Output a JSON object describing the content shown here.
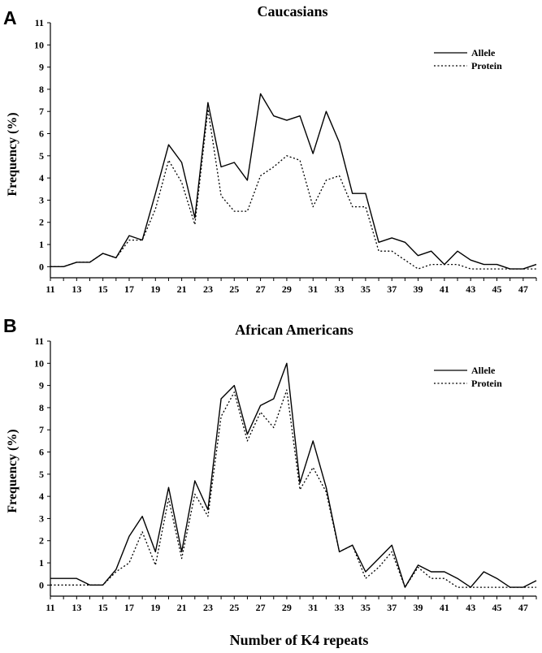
{
  "chart_data": [
    {
      "panel_label": "A",
      "type": "line",
      "title": "Caucasians",
      "xlabel": "",
      "ylabel": "Frequency (%)",
      "x": [
        11,
        12,
        13,
        14,
        15,
        16,
        17,
        18,
        19,
        20,
        21,
        22,
        23,
        24,
        25,
        26,
        27,
        28,
        29,
        30,
        31,
        32,
        33,
        34,
        35,
        36,
        37,
        38,
        39,
        40,
        41,
        42,
        43,
        44,
        45,
        46,
        47,
        48
      ],
      "xticks": [
        11,
        13,
        15,
        17,
        19,
        21,
        23,
        25,
        27,
        29,
        31,
        33,
        35,
        37,
        39,
        41,
        43,
        45,
        47
      ],
      "yticks": [
        0,
        1,
        2,
        3,
        4,
        5,
        6,
        7,
        8,
        9,
        10,
        11
      ],
      "xlim": [
        11,
        48
      ],
      "ylim": [
        -0.5,
        11
      ],
      "legend_position": "top-right",
      "series": [
        {
          "name": "Allele",
          "style": "solid",
          "values": [
            0,
            0,
            0.2,
            0.2,
            0.6,
            0.4,
            1.4,
            1.2,
            3.3,
            5.5,
            4.7,
            2.2,
            7.4,
            4.5,
            4.7,
            3.9,
            7.8,
            6.8,
            6.6,
            6.8,
            5.1,
            7.0,
            5.6,
            3.3,
            3.3,
            1.1,
            1.3,
            1.1,
            0.5,
            0.7,
            0.1,
            0.7,
            0.3,
            0.1,
            0.1,
            -0.1,
            -0.1,
            0.1
          ]
        },
        {
          "name": "Protein",
          "style": "dotted",
          "values": [
            0,
            0,
            0.2,
            0.2,
            0.6,
            0.4,
            1.2,
            1.2,
            2.6,
            4.8,
            3.8,
            1.9,
            7.1,
            3.2,
            2.5,
            2.5,
            4.1,
            4.5,
            5.0,
            4.8,
            2.7,
            3.9,
            4.1,
            2.7,
            2.7,
            0.7,
            0.7,
            0.3,
            -0.1,
            0.1,
            0.1,
            0.1,
            -0.1,
            -0.1,
            -0.1,
            -0.1,
            -0.1,
            -0.1
          ]
        }
      ]
    },
    {
      "panel_label": "B",
      "type": "line",
      "title": "African Americans",
      "xlabel": "Number of K4 repeats",
      "ylabel": "Frequency (%)",
      "x": [
        11,
        12,
        13,
        14,
        15,
        16,
        17,
        18,
        19,
        20,
        21,
        22,
        23,
        24,
        25,
        26,
        27,
        28,
        29,
        30,
        31,
        32,
        33,
        34,
        35,
        36,
        37,
        38,
        39,
        40,
        41,
        42,
        43,
        44,
        45,
        46,
        47,
        48
      ],
      "xticks": [
        11,
        13,
        15,
        17,
        19,
        21,
        23,
        25,
        27,
        29,
        31,
        33,
        35,
        37,
        39,
        41,
        43,
        45,
        47
      ],
      "yticks": [
        0,
        1,
        2,
        3,
        4,
        5,
        6,
        7,
        8,
        9,
        10,
        11
      ],
      "xlim": [
        11,
        48
      ],
      "ylim": [
        -0.5,
        11
      ],
      "legend_position": "top-right",
      "series": [
        {
          "name": "Allele",
          "style": "solid",
          "values": [
            0.3,
            0.3,
            0.3,
            0,
            0,
            0.7,
            2.2,
            3.1,
            1.5,
            4.4,
            1.5,
            4.7,
            3.4,
            8.4,
            9.0,
            6.8,
            8.1,
            8.4,
            10.0,
            4.6,
            6.5,
            4.4,
            1.5,
            1.8,
            0.6,
            1.2,
            1.8,
            -0.1,
            0.9,
            0.6,
            0.6,
            0.3,
            -0.1,
            0.6,
            0.3,
            -0.1,
            -0.1,
            0.2
          ]
        },
        {
          "name": "Protein",
          "style": "dotted",
          "values": [
            0,
            0,
            0,
            0,
            0,
            0.6,
            1.0,
            2.4,
            0.9,
            3.9,
            1.2,
            4.1,
            3.1,
            7.6,
            8.7,
            6.5,
            7.8,
            7.1,
            8.8,
            4.3,
            5.3,
            4.2,
            1.5,
            1.8,
            0.3,
            0.8,
            1.5,
            -0.1,
            0.8,
            0.3,
            0.3,
            -0.1,
            -0.1,
            -0.1,
            -0.1,
            -0.1,
            -0.1,
            -0.1
          ]
        }
      ]
    }
  ]
}
